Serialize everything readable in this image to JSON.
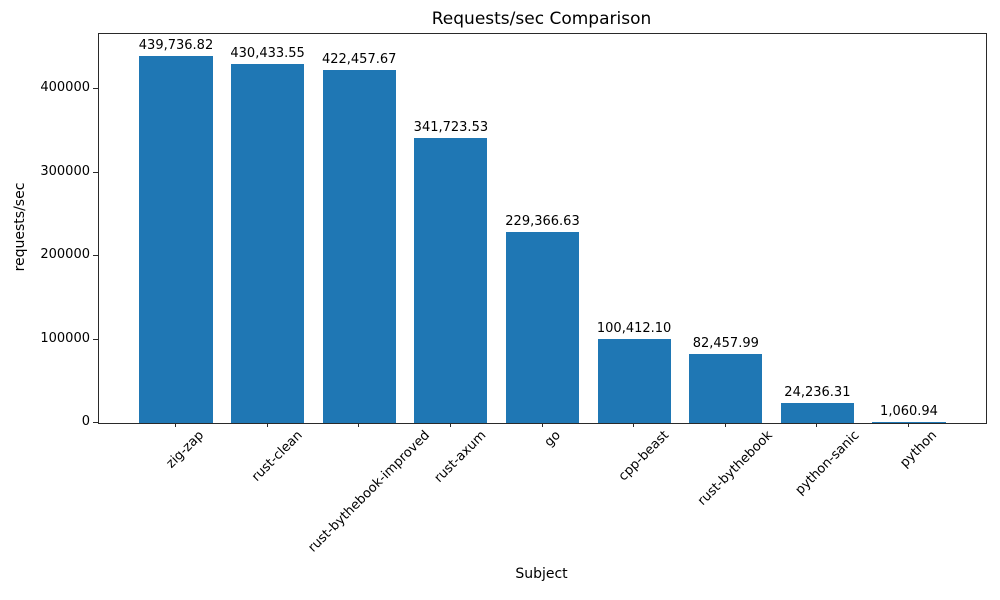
{
  "chart_data": {
    "type": "bar",
    "title": "Requests/sec Comparison",
    "xlabel": "Subject",
    "ylabel": "requests/sec",
    "categories": [
      "zig-zap",
      "rust-clean",
      "rust-bythebook-improved",
      "rust-axum",
      "go",
      "cpp-beast",
      "rust-bythebook",
      "python-sanic",
      "python"
    ],
    "values": [
      439736.82,
      430433.55,
      422457.67,
      341723.53,
      229366.63,
      100412.1,
      82457.99,
      24236.31,
      1060.94
    ],
    "value_labels": [
      "439,736.82",
      "430,433.55",
      "422,457.67",
      "341,723.53",
      "229,366.63",
      "100,412.10",
      "82,457.99",
      "24,236.31",
      "1,060.94"
    ],
    "bar_color": "#1f77b4",
    "bar_width_fraction": 0.8,
    "ylim": [
      0,
      465868
    ],
    "yticks": [
      0,
      100000,
      200000,
      300000,
      400000
    ],
    "ytick_labels": [
      "0",
      "100000",
      "200000",
      "300000",
      "400000"
    ],
    "grid": false,
    "legend": "none",
    "xtick_rotation_deg": 45
  }
}
